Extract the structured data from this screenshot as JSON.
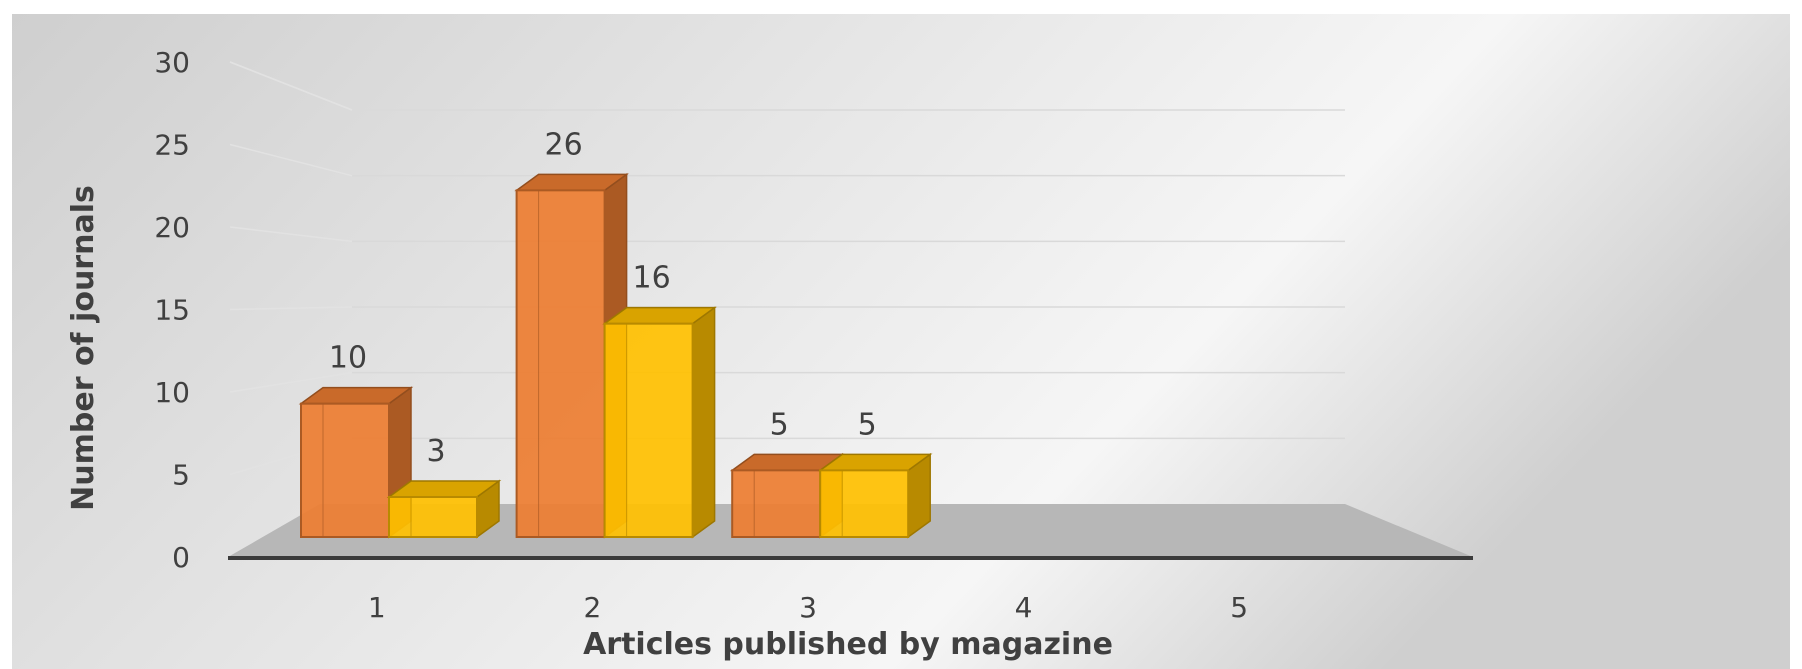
{
  "chart_data": {
    "type": "bar",
    "title": "",
    "xlabel": "Articles published by magazine",
    "ylabel": "Number of journals",
    "categories": [
      "1",
      "2",
      "3",
      "4",
      "5"
    ],
    "ylim": [
      0,
      30
    ],
    "yticks": [
      0,
      5,
      10,
      15,
      20,
      25,
      30
    ],
    "grid": true,
    "legend": "none",
    "series": [
      {
        "values": [
          10,
          26,
          5,
          null,
          null
        ],
        "color": "#ED7D31"
      },
      {
        "values": [
          3,
          16,
          5,
          null,
          null
        ],
        "color": "#FFC000"
      }
    ]
  }
}
